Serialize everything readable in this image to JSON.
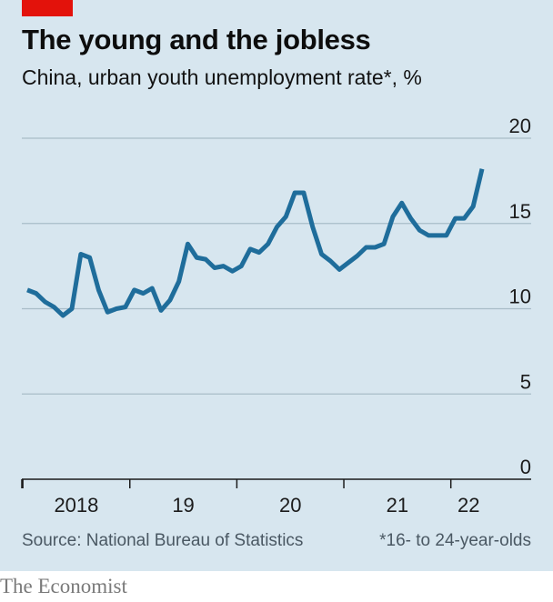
{
  "header": {
    "title": "The young and the jobless",
    "subtitle": "China, urban youth unemployment rate*, %"
  },
  "footer": {
    "source": "Source: National Bureau of Statistics",
    "footnote": "*16- to 24-year-olds",
    "brand": "The Economist"
  },
  "colors": {
    "background": "#d7e6ef",
    "line": "#1f6d9b",
    "accent": "#e3120b",
    "grid": "#a9bcc8",
    "axis": "#1b1b1b"
  },
  "chart_data": {
    "type": "line",
    "title": "The young and the jobless",
    "subtitle": "China, urban youth unemployment rate*, %",
    "ylim": [
      0,
      20
    ],
    "yticks": [
      0,
      5,
      10,
      15,
      20
    ],
    "grid": true,
    "x_tick_labels": [
      "2018",
      "19",
      "20",
      "21",
      "22"
    ],
    "series": [
      {
        "values": [
          11.1,
          10.9,
          10.4,
          10.1,
          9.6,
          10.0,
          13.2,
          13.0,
          11.1,
          9.8,
          10.0,
          10.1,
          11.1,
          10.9,
          11.2,
          9.9,
          10.5,
          11.6,
          13.8,
          13.0,
          12.9,
          12.4,
          12.5,
          12.2,
          12.5,
          13.5,
          13.3,
          13.8,
          14.8,
          15.4,
          16.8,
          16.8,
          14.8,
          13.2,
          12.8,
          12.3,
          12.7,
          13.1,
          13.6,
          13.6,
          13.8,
          15.4,
          16.2,
          15.3,
          14.6,
          14.3,
          14.3,
          14.3,
          15.3,
          15.3,
          16.0,
          18.2
        ]
      }
    ]
  }
}
